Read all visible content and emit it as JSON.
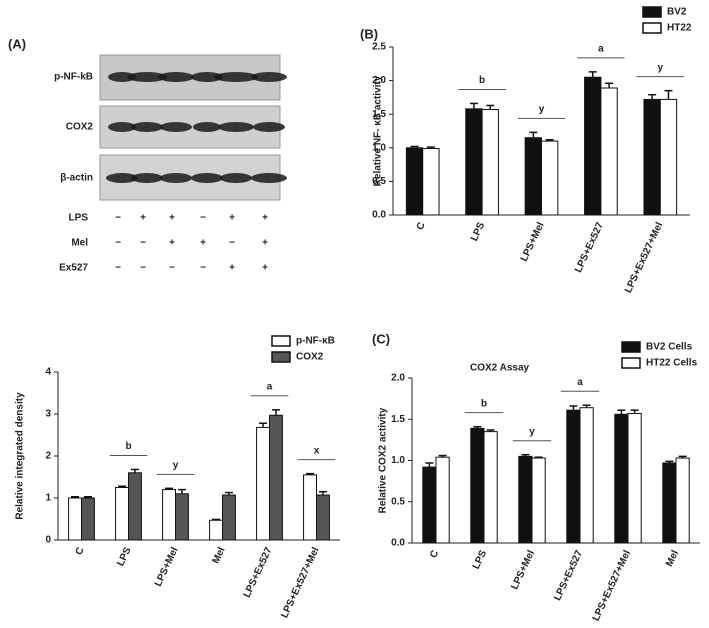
{
  "panel_a": {
    "panel": "(A)",
    "blots": [
      "p-NF-kB",
      "COX2",
      "β-actin"
    ],
    "treatments": [
      {
        "label": "LPS",
        "signs": [
          "−",
          "+",
          "+",
          "−",
          "+",
          "+"
        ]
      },
      {
        "label": "Mel",
        "signs": [
          "−",
          "−",
          "+",
          "+",
          "−",
          "+"
        ]
      },
      {
        "label": "Ex527",
        "signs": [
          "−",
          "−",
          "−",
          "−",
          "+",
          "+"
        ]
      }
    ]
  },
  "chart_data": [
    {
      "type": "bar",
      "panel": "(B)",
      "ylabel": "Relative NF- κB activity",
      "categories": [
        "C",
        "LPS",
        "LPS+Mel",
        "LPS+Ex527",
        "LPS+Ex527+Mel"
      ],
      "series": [
        {
          "name": "BV2",
          "color": "#111111",
          "values": [
            1.0,
            1.58,
            1.15,
            2.05,
            1.72
          ],
          "errors": [
            0.02,
            0.08,
            0.08,
            0.08,
            0.07
          ]
        },
        {
          "name": "HT22",
          "color": "#ffffff",
          "values": [
            0.99,
            1.57,
            1.1,
            1.89,
            1.72
          ],
          "errors": [
            0.02,
            0.06,
            0.02,
            0.07,
            0.13
          ]
        }
      ],
      "annotations": [
        null,
        "b",
        "y",
        "a",
        "y"
      ],
      "ylim": [
        0,
        2.5
      ],
      "yticks": [
        {
          "value": 0,
          "label": "0.0"
        },
        {
          "value": 0.5,
          "label": "0.5"
        },
        {
          "value": 1,
          "label": "1.0"
        },
        {
          "value": 1.5,
          "label": "1.5"
        },
        {
          "value": 2,
          "label": "2.0"
        },
        {
          "value": 2.5,
          "label": "2.5"
        }
      ]
    },
    {
      "type": "bar",
      "ylabel": "Relative integrated density",
      "categories": [
        "C",
        "LPS",
        "LPS+Mel",
        "Mel",
        "LPS+Ex527",
        "LPS+Ex527+Mel"
      ],
      "series": [
        {
          "name": "p-NF-κB",
          "color": "#ffffff",
          "values": [
            1.0,
            1.25,
            1.2,
            0.47,
            2.68,
            1.55
          ],
          "errors": [
            0.03,
            0.03,
            0.03,
            0.02,
            0.1,
            0.03
          ]
        },
        {
          "name": "COX2",
          "color": "#555555",
          "values": [
            1.0,
            1.6,
            1.1,
            1.07,
            2.97,
            1.07
          ],
          "errors": [
            0.03,
            0.08,
            0.1,
            0.06,
            0.13,
            0.08
          ]
        }
      ],
      "annotations": [
        null,
        "b",
        "y",
        null,
        "a",
        "x"
      ],
      "ylim": [
        0,
        4
      ],
      "yticks": [
        0,
        1,
        2,
        3,
        4
      ]
    },
    {
      "type": "bar",
      "panel": "(C)",
      "title": "COX2 Assay",
      "ylabel": "Relative COX2 activity",
      "categories": [
        "C",
        "LPS",
        "LPS+Mel",
        "LPS+Ex527",
        "LPS+Ex527+Mel",
        "Mel"
      ],
      "series": [
        {
          "name": "BV2 Cells",
          "color": "#111111",
          "values": [
            0.92,
            1.39,
            1.05,
            1.61,
            1.56,
            0.97
          ],
          "errors": [
            0.05,
            0.02,
            0.02,
            0.05,
            0.05,
            0.02
          ]
        },
        {
          "name": "HT22 Cells",
          "color": "#ffffff",
          "values": [
            1.04,
            1.35,
            1.03,
            1.64,
            1.57,
            1.03
          ],
          "errors": [
            0.02,
            0.02,
            0.01,
            0.03,
            0.04,
            0.02
          ]
        }
      ],
      "annotations": [
        null,
        "b",
        "y",
        "a",
        null,
        null
      ],
      "ylim": [
        0,
        2
      ],
      "yticks": [
        {
          "value": 0,
          "label": "0.0"
        },
        {
          "value": 0.5,
          "label": "0.5"
        },
        {
          "value": 1,
          "label": "1.0"
        },
        {
          "value": 1.5,
          "label": "1.5"
        },
        {
          "value": 2,
          "label": "2.0"
        }
      ]
    }
  ]
}
